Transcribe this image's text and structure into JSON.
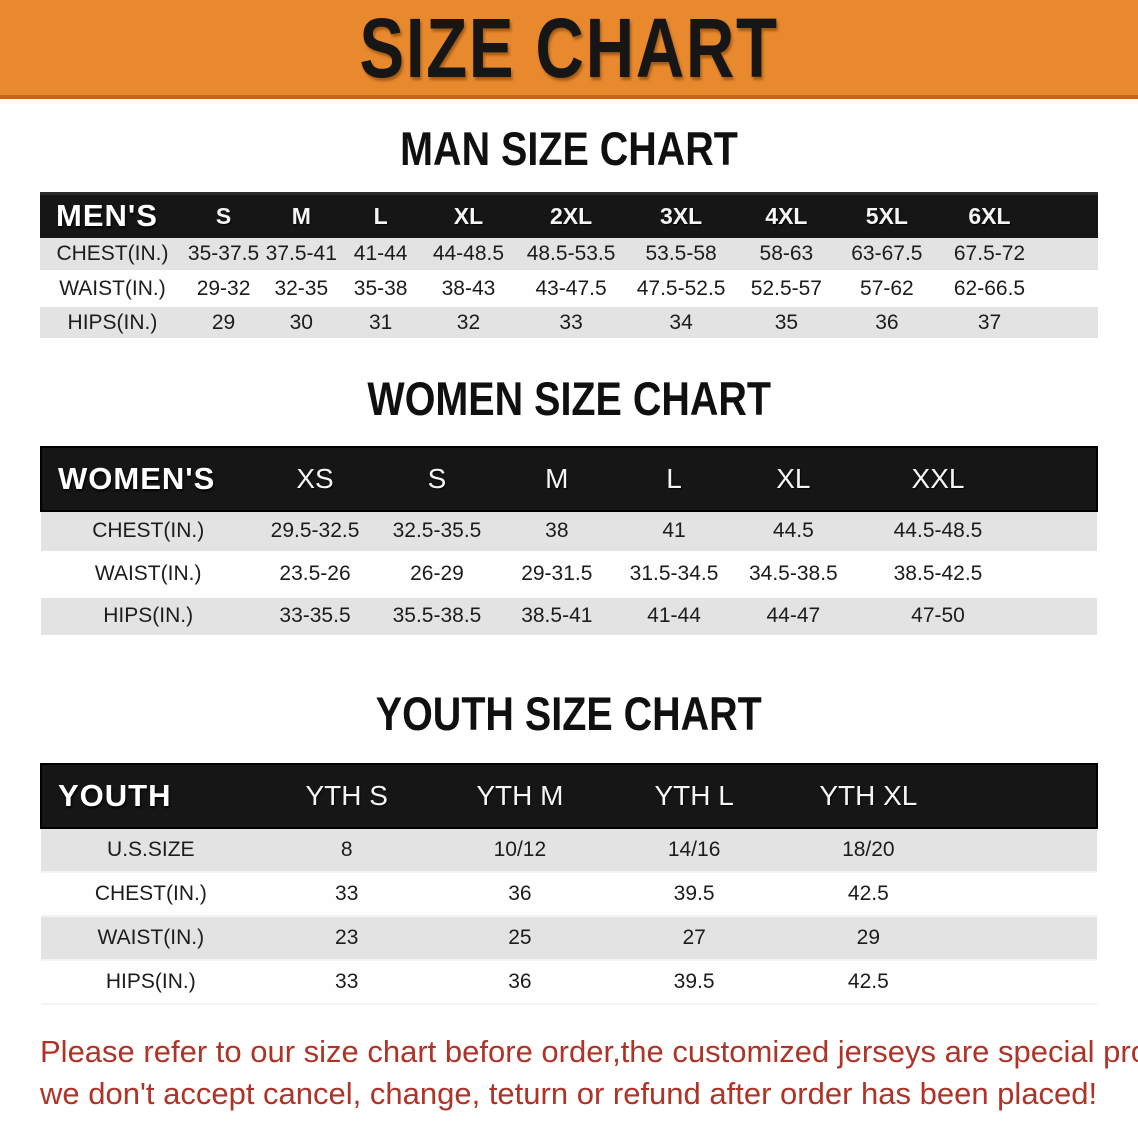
{
  "banner": {
    "title": "SIZE CHART",
    "bg": "#E8892E"
  },
  "colors": {
    "table_header_bg": "#161616",
    "row_shade": "#E3E3E3",
    "disclaimer_red": "#B03328"
  },
  "sections": [
    {
      "heading": "MAN SIZE CHART",
      "table": {
        "label": "MEN'S",
        "sizes": [
          "S",
          "M",
          "L",
          "XL",
          "2XL",
          "3XL",
          "4XL",
          "5XL",
          "6XL"
        ],
        "rows": [
          {
            "label": "CHEST(IN.)",
            "values": [
              "35-37.5",
              "37.5-41",
              "41-44",
              "44-48.5",
              "48.5-53.5",
              "53.5-58",
              "58-63",
              "63-67.5",
              "67.5-72"
            ]
          },
          {
            "label": "WAIST(IN.)",
            "values": [
              "29-32",
              "32-35",
              "35-38",
              "38-43",
              "43-47.5",
              "47.5-52.5",
              "52.5-57",
              "57-62",
              "62-66.5"
            ]
          },
          {
            "label": "HIPS(IN.)",
            "values": [
              "29",
              "30",
              "31",
              "32",
              "33",
              "34",
              "35",
              "36",
              "37"
            ]
          }
        ]
      }
    },
    {
      "heading": "WOMEN SIZE CHART",
      "table": {
        "label": "WOMEN'S",
        "sizes": [
          "XS",
          "S",
          "M",
          "L",
          "XL",
          "XXL"
        ],
        "rows": [
          {
            "label": "CHEST(IN.)",
            "values": [
              "29.5-32.5",
              "32.5-35.5",
              "38",
              "41",
              "44.5",
              "44.5-48.5"
            ]
          },
          {
            "label": "WAIST(IN.)",
            "values": [
              "23.5-26",
              "26-29",
              "29-31.5",
              "31.5-34.5",
              "34.5-38.5",
              "38.5-42.5"
            ]
          },
          {
            "label": "HIPS(IN.)",
            "values": [
              "33-35.5",
              "35.5-38.5",
              "38.5-41",
              "41-44",
              "44-47",
              "47-50"
            ]
          }
        ]
      }
    },
    {
      "heading": "YOUTH SIZE CHART",
      "table": {
        "label": "YOUTH",
        "sizes": [
          "YTH S",
          "YTH M",
          "YTH L",
          "YTH XL"
        ],
        "rows": [
          {
            "label": "U.S.SIZE",
            "values": [
              "8",
              "10/12",
              "14/16",
              "18/20"
            ]
          },
          {
            "label": "CHEST(IN.)",
            "values": [
              "33",
              "36",
              "39.5",
              "42.5"
            ]
          },
          {
            "label": "WAIST(IN.)",
            "values": [
              "23",
              "25",
              "27",
              "29"
            ]
          },
          {
            "label": "HIPS(IN.)",
            "values": [
              "33",
              "36",
              "39.5",
              "42.5"
            ]
          }
        ]
      }
    }
  ],
  "disclaimer": {
    "line1": "Please refer to our size chart before order,the customized jerseys are special products,",
    "line2": "we don't accept cancel, change, teturn or refund after order has been placed!"
  }
}
